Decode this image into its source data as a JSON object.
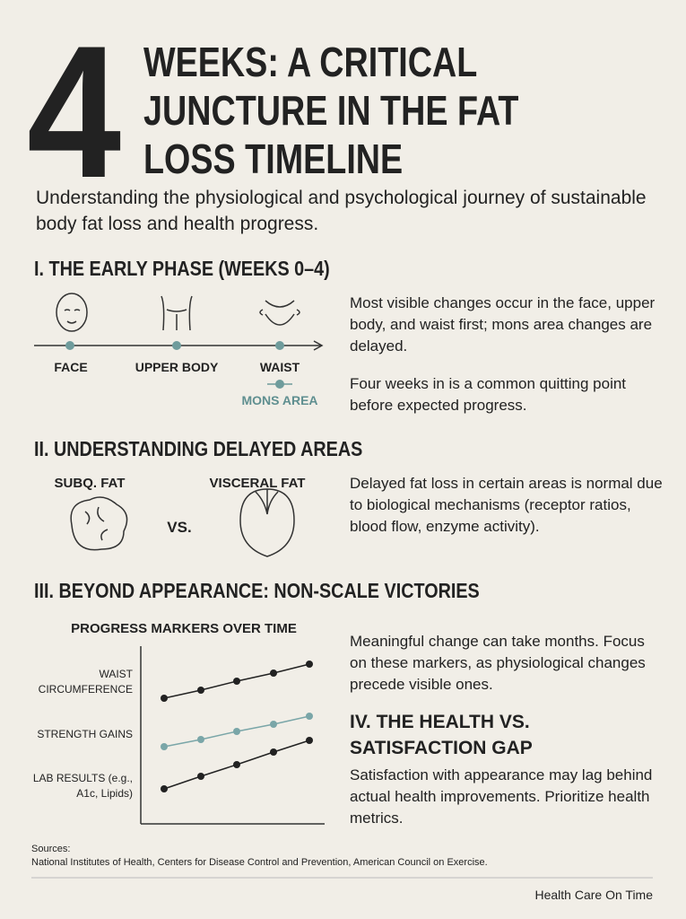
{
  "header": {
    "big_number": "4",
    "title_lines": [
      "WEEKS: A CRITICAL",
      "JUNCTURE IN THE FAT",
      "LOSS TIMELINE"
    ],
    "subtitle": "Understanding the physiological and psychological journey of sustainable body fat loss and health progress."
  },
  "sections": [
    {
      "heading": "I. THE EARLY PHASE (WEEKS 0–4)",
      "timeline_labels": [
        "FACE",
        "UPPER BODY",
        "WAIST",
        "MONS AREA"
      ],
      "paragraphs": [
        "Most visible changes occur in the face, upper body, and waist first; mons area changes are delayed.",
        "Four weeks in is a common quitting point before expected progress."
      ]
    },
    {
      "heading": "II. UNDERSTANDING DELAYED AREAS",
      "left_label": "SUBQ. FAT",
      "versus": "VS.",
      "right_label": "VISCERAL FAT",
      "paragraphs": [
        "Delayed fat loss in certain areas is normal due to biological mechanisms (receptor ratios, blood flow, enzyme activity)."
      ]
    },
    {
      "heading": "III. BEYOND APPEARANCE: NON-SCALE VICTORIES",
      "chart_title": "PROGRESS MARKERS OVER TIME",
      "markers": [
        "WAIST CIRCUMFERENCE",
        "STRENGTH GAINS",
        "LAB RESULTS (e.g., A1c, Lipids)"
      ],
      "paragraphs": [
        "Meaningful change can take months. Focus on these markers, as physiological changes precede visible ones."
      ]
    },
    {
      "heading": "IV. THE HEALTH VS. SATISFACTION GAP",
      "paragraphs": [
        "Satisfaction with appearance may lag behind actual health improvements. Prioritize health metrics."
      ]
    }
  ],
  "sources": {
    "label": "Sources:",
    "text": "National Institutes of Health, Centers for Disease Control and Prevention, American Council on Exercise."
  },
  "footer": "Health Care On Time"
}
